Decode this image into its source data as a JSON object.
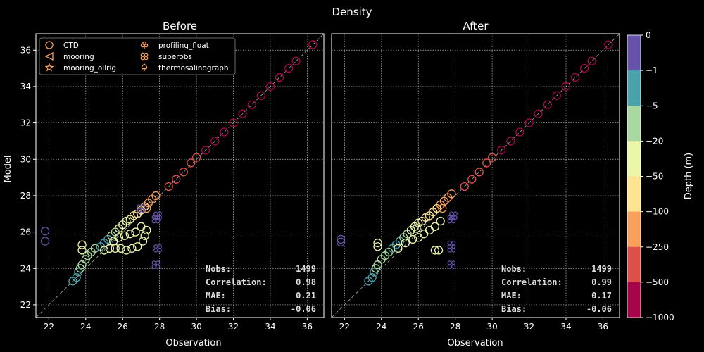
{
  "chart_data": {
    "type": "scatter",
    "title": "Density",
    "xlabel": "Observation",
    "ylabel": "Model",
    "xlim": [
      21.3,
      36.9
    ],
    "ylim": [
      21.3,
      36.9
    ],
    "xticks": [
      "22",
      "24",
      "26",
      "28",
      "30",
      "32",
      "34",
      "36"
    ],
    "yticks": [
      "22",
      "24",
      "26",
      "28",
      "30",
      "32",
      "34",
      "36"
    ],
    "grid": true,
    "one_to_one_line": true,
    "legend": {
      "placement": "top-left of first panel",
      "entries": [
        {
          "label": "CTD",
          "marker": "circle"
        },
        {
          "label": "mooring",
          "marker": "triangle-left"
        },
        {
          "label": "mooring_oilrig",
          "marker": "star"
        },
        {
          "label": "profiling_float",
          "marker": "clover"
        },
        {
          "label": "superobs",
          "marker": "x-ring"
        },
        {
          "label": "thermosalinograph",
          "marker": "spade"
        }
      ]
    },
    "colorbar": {
      "label": "Depth (m)",
      "ticks": [
        "0",
        "−1",
        "−5",
        "−20",
        "−50",
        "−100",
        "−250",
        "−500",
        "−1000"
      ],
      "colors": [
        "#6652a6",
        "#4aa3ac",
        "#a8d9a0",
        "#ecf6a8",
        "#fee391",
        "#f9a15a",
        "#e0504a",
        "#a7044a"
      ]
    },
    "panels": [
      {
        "title": "Before",
        "stats": [
          {
            "label": "Nobs:",
            "value": "1499"
          },
          {
            "label": "Correlation:",
            "value": "0.98"
          },
          {
            "label": "MAE:",
            "value": "0.21"
          },
          {
            "label": "Bias:",
            "value": "-0.06"
          }
        ],
        "points": [
          {
            "x": 21.8,
            "y": 26.05,
            "depth_class": 0,
            "marker": "circle"
          },
          {
            "x": 21.8,
            "y": 25.5,
            "depth_class": 0,
            "marker": "circle"
          },
          {
            "x": 23.3,
            "y": 23.3,
            "depth_class": 1,
            "marker": "circle"
          },
          {
            "x": 23.5,
            "y": 23.5,
            "depth_class": 1,
            "marker": "circle"
          },
          {
            "x": 23.6,
            "y": 23.8,
            "depth_class": 1,
            "marker": "circle"
          },
          {
            "x": 23.7,
            "y": 24.0,
            "depth_class": 2,
            "marker": "circle"
          },
          {
            "x": 23.8,
            "y": 24.2,
            "depth_class": 2,
            "marker": "circle"
          },
          {
            "x": 24.0,
            "y": 24.5,
            "depth_class": 2,
            "marker": "circle"
          },
          {
            "x": 24.1,
            "y": 24.7,
            "depth_class": 2,
            "marker": "circle"
          },
          {
            "x": 24.3,
            "y": 24.9,
            "depth_class": 2,
            "marker": "circle"
          },
          {
            "x": 24.5,
            "y": 25.1,
            "depth_class": 2,
            "marker": "circle"
          },
          {
            "x": 23.8,
            "y": 25.3,
            "depth_class": 3,
            "marker": "circle"
          },
          {
            "x": 23.8,
            "y": 25.0,
            "depth_class": 3,
            "marker": "circle"
          },
          {
            "x": 24.8,
            "y": 25.2,
            "depth_class": 1,
            "marker": "circle"
          },
          {
            "x": 25.0,
            "y": 25.4,
            "depth_class": 1,
            "marker": "circle"
          },
          {
            "x": 25.2,
            "y": 25.6,
            "depth_class": 1,
            "marker": "circle"
          },
          {
            "x": 25.4,
            "y": 25.8,
            "depth_class": 2,
            "marker": "circle"
          },
          {
            "x": 25.6,
            "y": 26.0,
            "depth_class": 2,
            "marker": "circle"
          },
          {
            "x": 25.8,
            "y": 26.2,
            "depth_class": 3,
            "marker": "circle"
          },
          {
            "x": 26.0,
            "y": 26.4,
            "depth_class": 3,
            "marker": "circle"
          },
          {
            "x": 26.2,
            "y": 26.6,
            "depth_class": 3,
            "marker": "circle"
          },
          {
            "x": 26.4,
            "y": 26.7,
            "depth_class": 3,
            "marker": "circle"
          },
          {
            "x": 26.6,
            "y": 26.9,
            "depth_class": 4,
            "marker": "circle"
          },
          {
            "x": 26.8,
            "y": 27.0,
            "depth_class": 4,
            "marker": "circle"
          },
          {
            "x": 27.0,
            "y": 27.2,
            "depth_class": 4,
            "marker": "circle"
          },
          {
            "x": 27.2,
            "y": 27.4,
            "depth_class": 4,
            "marker": "circle"
          },
          {
            "x": 27.4,
            "y": 27.6,
            "depth_class": 5,
            "marker": "circle"
          },
          {
            "x": 27.6,
            "y": 27.8,
            "depth_class": 5,
            "marker": "circle"
          },
          {
            "x": 27.8,
            "y": 28.0,
            "depth_class": 5,
            "marker": "circle"
          },
          {
            "x": 27.3,
            "y": 27.3,
            "depth_class": 5,
            "marker": "circle"
          },
          {
            "x": 25.0,
            "y": 25.0,
            "depth_class": 3,
            "marker": "circle"
          },
          {
            "x": 25.3,
            "y": 25.1,
            "depth_class": 3,
            "marker": "circle"
          },
          {
            "x": 25.6,
            "y": 25.1,
            "depth_class": 3,
            "marker": "circle"
          },
          {
            "x": 25.9,
            "y": 25.1,
            "depth_class": 3,
            "marker": "circle"
          },
          {
            "x": 26.2,
            "y": 25.0,
            "depth_class": 3,
            "marker": "circle"
          },
          {
            "x": 26.5,
            "y": 25.1,
            "depth_class": 3,
            "marker": "circle"
          },
          {
            "x": 26.8,
            "y": 25.2,
            "depth_class": 3,
            "marker": "circle"
          },
          {
            "x": 27.1,
            "y": 25.5,
            "depth_class": 3,
            "marker": "circle"
          },
          {
            "x": 27.2,
            "y": 25.8,
            "depth_class": 3,
            "marker": "circle"
          },
          {
            "x": 27.3,
            "y": 26.1,
            "depth_class": 3,
            "marker": "circle"
          },
          {
            "x": 25.8,
            "y": 25.7,
            "depth_class": 3,
            "marker": "circle"
          },
          {
            "x": 26.1,
            "y": 25.8,
            "depth_class": 3,
            "marker": "circle"
          },
          {
            "x": 26.4,
            "y": 25.9,
            "depth_class": 3,
            "marker": "circle"
          },
          {
            "x": 26.7,
            "y": 26.0,
            "depth_class": 3,
            "marker": "circle"
          },
          {
            "x": 27.0,
            "y": 26.3,
            "depth_class": 3,
            "marker": "circle"
          },
          {
            "x": 25.5,
            "y": 25.5,
            "depth_class": 3,
            "marker": "circle"
          },
          {
            "x": 28.5,
            "y": 28.5,
            "depth_class": 6,
            "marker": "circle"
          },
          {
            "x": 28.9,
            "y": 28.9,
            "depth_class": 6,
            "marker": "circle"
          },
          {
            "x": 29.3,
            "y": 29.3,
            "depth_class": 6,
            "marker": "circle"
          },
          {
            "x": 29.7,
            "y": 29.8,
            "depth_class": 6,
            "marker": "circle"
          },
          {
            "x": 30.0,
            "y": 30.1,
            "depth_class": 6,
            "marker": "circle"
          },
          {
            "x": 30.5,
            "y": 30.5,
            "depth_class": 7,
            "marker": "circle"
          },
          {
            "x": 31.0,
            "y": 31.0,
            "depth_class": 7,
            "marker": "circle"
          },
          {
            "x": 31.5,
            "y": 31.5,
            "depth_class": 7,
            "marker": "circle"
          },
          {
            "x": 32.0,
            "y": 32.0,
            "depth_class": 7,
            "marker": "circle"
          },
          {
            "x": 32.5,
            "y": 32.5,
            "depth_class": 7,
            "marker": "circle"
          },
          {
            "x": 33.0,
            "y": 33.0,
            "depth_class": 7,
            "marker": "circle"
          },
          {
            "x": 33.5,
            "y": 33.5,
            "depth_class": 7,
            "marker": "circle"
          },
          {
            "x": 34.0,
            "y": 34.0,
            "depth_class": 7,
            "marker": "circle"
          },
          {
            "x": 34.5,
            "y": 34.5,
            "depth_class": 7,
            "marker": "circle"
          },
          {
            "x": 35.0,
            "y": 35.0,
            "depth_class": 7,
            "marker": "circle"
          },
          {
            "x": 35.4,
            "y": 35.4,
            "depth_class": 7,
            "marker": "circle"
          },
          {
            "x": 36.3,
            "y": 36.3,
            "depth_class": 7,
            "marker": "circle"
          },
          {
            "x": 27.9,
            "y": 26.9,
            "depth_class": 0,
            "marker": "x-ring"
          },
          {
            "x": 27.8,
            "y": 26.7,
            "depth_class": 0,
            "marker": "x-ring"
          },
          {
            "x": 27.9,
            "y": 25.1,
            "depth_class": 0,
            "marker": "x-ring"
          },
          {
            "x": 27.8,
            "y": 24.2,
            "depth_class": 0,
            "marker": "x-ring"
          },
          {
            "x": 27.0,
            "y": 27.3,
            "depth_class": 0,
            "marker": "x-ring"
          }
        ]
      },
      {
        "title": "After",
        "stats": [
          {
            "label": "Nobs:",
            "value": "1499"
          },
          {
            "label": "Correlation:",
            "value": "0.99"
          },
          {
            "label": "MAE:",
            "value": "0.17"
          },
          {
            "label": "Bias:",
            "value": "-0.06"
          }
        ],
        "points": [
          {
            "x": 21.8,
            "y": 25.6,
            "depth_class": 0,
            "marker": "circle"
          },
          {
            "x": 21.8,
            "y": 25.45,
            "depth_class": 0,
            "marker": "circle"
          },
          {
            "x": 23.3,
            "y": 23.3,
            "depth_class": 1,
            "marker": "circle"
          },
          {
            "x": 23.5,
            "y": 23.5,
            "depth_class": 1,
            "marker": "circle"
          },
          {
            "x": 23.6,
            "y": 23.8,
            "depth_class": 1,
            "marker": "circle"
          },
          {
            "x": 23.7,
            "y": 24.0,
            "depth_class": 2,
            "marker": "circle"
          },
          {
            "x": 23.8,
            "y": 24.2,
            "depth_class": 2,
            "marker": "circle"
          },
          {
            "x": 24.0,
            "y": 24.5,
            "depth_class": 2,
            "marker": "circle"
          },
          {
            "x": 24.2,
            "y": 24.7,
            "depth_class": 2,
            "marker": "circle"
          },
          {
            "x": 24.4,
            "y": 24.9,
            "depth_class": 2,
            "marker": "circle"
          },
          {
            "x": 24.6,
            "y": 25.1,
            "depth_class": 1,
            "marker": "circle"
          },
          {
            "x": 23.8,
            "y": 25.4,
            "depth_class": 3,
            "marker": "circle"
          },
          {
            "x": 23.8,
            "y": 25.2,
            "depth_class": 3,
            "marker": "circle"
          },
          {
            "x": 24.8,
            "y": 25.3,
            "depth_class": 1,
            "marker": "circle"
          },
          {
            "x": 25.0,
            "y": 25.5,
            "depth_class": 1,
            "marker": "circle"
          },
          {
            "x": 25.2,
            "y": 25.7,
            "depth_class": 2,
            "marker": "circle"
          },
          {
            "x": 25.4,
            "y": 25.9,
            "depth_class": 2,
            "marker": "circle"
          },
          {
            "x": 25.6,
            "y": 26.1,
            "depth_class": 3,
            "marker": "circle"
          },
          {
            "x": 25.8,
            "y": 26.3,
            "depth_class": 3,
            "marker": "circle"
          },
          {
            "x": 26.0,
            "y": 26.5,
            "depth_class": 3,
            "marker": "circle"
          },
          {
            "x": 26.2,
            "y": 26.6,
            "depth_class": 3,
            "marker": "circle"
          },
          {
            "x": 26.4,
            "y": 26.8,
            "depth_class": 4,
            "marker": "circle"
          },
          {
            "x": 26.6,
            "y": 26.9,
            "depth_class": 4,
            "marker": "circle"
          },
          {
            "x": 26.8,
            "y": 27.1,
            "depth_class": 4,
            "marker": "circle"
          },
          {
            "x": 27.0,
            "y": 27.3,
            "depth_class": 4,
            "marker": "circle"
          },
          {
            "x": 27.2,
            "y": 27.5,
            "depth_class": 5,
            "marker": "circle"
          },
          {
            "x": 27.4,
            "y": 27.7,
            "depth_class": 5,
            "marker": "circle"
          },
          {
            "x": 27.6,
            "y": 27.9,
            "depth_class": 5,
            "marker": "circle"
          },
          {
            "x": 27.8,
            "y": 28.1,
            "depth_class": 5,
            "marker": "circle"
          },
          {
            "x": 27.3,
            "y": 27.3,
            "depth_class": 5,
            "marker": "circle"
          },
          {
            "x": 24.9,
            "y": 25.1,
            "depth_class": 3,
            "marker": "circle"
          },
          {
            "x": 25.3,
            "y": 25.4,
            "depth_class": 3,
            "marker": "circle"
          },
          {
            "x": 25.7,
            "y": 25.6,
            "depth_class": 3,
            "marker": "circle"
          },
          {
            "x": 26.0,
            "y": 25.7,
            "depth_class": 3,
            "marker": "circle"
          },
          {
            "x": 26.3,
            "y": 25.9,
            "depth_class": 3,
            "marker": "circle"
          },
          {
            "x": 26.6,
            "y": 26.1,
            "depth_class": 3,
            "marker": "circle"
          },
          {
            "x": 26.9,
            "y": 26.3,
            "depth_class": 3,
            "marker": "circle"
          },
          {
            "x": 27.2,
            "y": 26.6,
            "depth_class": 3,
            "marker": "circle"
          },
          {
            "x": 26.9,
            "y": 25.0,
            "depth_class": 3,
            "marker": "circle"
          },
          {
            "x": 27.1,
            "y": 25.0,
            "depth_class": 3,
            "marker": "circle"
          },
          {
            "x": 25.9,
            "y": 26.2,
            "depth_class": 3,
            "marker": "circle"
          },
          {
            "x": 28.5,
            "y": 28.5,
            "depth_class": 6,
            "marker": "circle"
          },
          {
            "x": 28.9,
            "y": 28.9,
            "depth_class": 6,
            "marker": "circle"
          },
          {
            "x": 29.3,
            "y": 29.3,
            "depth_class": 6,
            "marker": "circle"
          },
          {
            "x": 29.7,
            "y": 29.8,
            "depth_class": 6,
            "marker": "circle"
          },
          {
            "x": 30.0,
            "y": 30.1,
            "depth_class": 6,
            "marker": "circle"
          },
          {
            "x": 30.5,
            "y": 30.5,
            "depth_class": 7,
            "marker": "circle"
          },
          {
            "x": 31.0,
            "y": 31.0,
            "depth_class": 7,
            "marker": "circle"
          },
          {
            "x": 31.5,
            "y": 31.5,
            "depth_class": 7,
            "marker": "circle"
          },
          {
            "x": 32.0,
            "y": 32.0,
            "depth_class": 7,
            "marker": "circle"
          },
          {
            "x": 32.5,
            "y": 32.5,
            "depth_class": 7,
            "marker": "circle"
          },
          {
            "x": 33.0,
            "y": 33.0,
            "depth_class": 7,
            "marker": "circle"
          },
          {
            "x": 33.5,
            "y": 33.5,
            "depth_class": 7,
            "marker": "circle"
          },
          {
            "x": 34.0,
            "y": 34.0,
            "depth_class": 7,
            "marker": "circle"
          },
          {
            "x": 34.5,
            "y": 34.5,
            "depth_class": 7,
            "marker": "circle"
          },
          {
            "x": 35.0,
            "y": 35.0,
            "depth_class": 7,
            "marker": "circle"
          },
          {
            "x": 35.4,
            "y": 35.4,
            "depth_class": 7,
            "marker": "circle"
          },
          {
            "x": 36.3,
            "y": 36.3,
            "depth_class": 7,
            "marker": "circle"
          },
          {
            "x": 27.9,
            "y": 26.9,
            "depth_class": 0,
            "marker": "x-ring"
          },
          {
            "x": 27.8,
            "y": 26.7,
            "depth_class": 0,
            "marker": "x-ring"
          },
          {
            "x": 27.8,
            "y": 25.3,
            "depth_class": 0,
            "marker": "x-ring"
          },
          {
            "x": 27.8,
            "y": 25.1,
            "depth_class": 0,
            "marker": "x-ring"
          },
          {
            "x": 27.8,
            "y": 24.2,
            "depth_class": 0,
            "marker": "x-ring"
          }
        ]
      }
    ]
  }
}
